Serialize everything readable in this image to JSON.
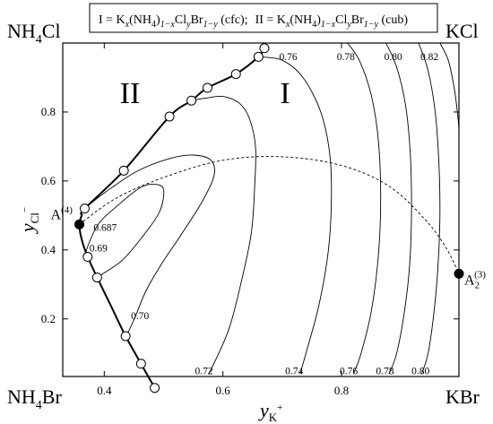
{
  "chart_data": {
    "type": "line",
    "title": "",
    "legend_box": {
      "phase_I": "I = K",
      "phase_I_x": "x",
      "phase_I_mid": "(NH",
      "phase_I_4": "4",
      "phase_I_rest": ")",
      "phase_I_1x": "1−x",
      "phase_I_cl": "Cl",
      "phase_I_y": "y",
      "phase_I_br": "Br",
      "phase_I_1y": "1−y",
      "phase_I_tag": " (cfc);",
      "phase_II": "II = K",
      "phase_II_tag": " (cub)"
    },
    "corners": {
      "top_left_a": "NH",
      "top_left_sub": "4",
      "top_left_b": "Cl",
      "top_right": "KCl",
      "bottom_left_a": "NH",
      "bottom_left_sub": "4",
      "bottom_left_b": "Br",
      "bottom_right": "KBr"
    },
    "region_labels": {
      "I": "I",
      "II": "II"
    },
    "xlabel": {
      "base": "y",
      "sub": "K",
      "sup": "+"
    },
    "ylabel": {
      "base": "y",
      "sub": "Cl",
      "sup": "−"
    },
    "x_ticks": [
      "0.4",
      "0.6",
      "0.8"
    ],
    "y_ticks": [
      "0.2",
      "0.4",
      "0.6",
      "0.8"
    ],
    "xlim": [
      0.33,
      0.998
    ],
    "ylim": [
      0.033,
      1.0
    ],
    "phase_boundary": [
      [
        0.485,
        0.0
      ],
      [
        0.462,
        0.07
      ],
      [
        0.436,
        0.15
      ],
      [
        0.412,
        0.235
      ],
      [
        0.388,
        0.32
      ],
      [
        0.372,
        0.38
      ],
      [
        0.362,
        0.43
      ],
      [
        0.358,
        0.474
      ],
      [
        0.362,
        0.5
      ],
      [
        0.367,
        0.52
      ],
      [
        0.433,
        0.63
      ],
      [
        0.51,
        0.787
      ],
      [
        0.547,
        0.833
      ],
      [
        0.574,
        0.87
      ],
      [
        0.622,
        0.91
      ],
      [
        0.66,
        0.96
      ],
      [
        0.67,
        0.985
      ]
    ],
    "boundary_points": [
      [
        0.485,
        0.0
      ],
      [
        0.462,
        0.07
      ],
      [
        0.436,
        0.15
      ],
      [
        0.388,
        0.32
      ],
      [
        0.372,
        0.38
      ],
      [
        0.367,
        0.52
      ],
      [
        0.433,
        0.63
      ],
      [
        0.51,
        0.787
      ],
      [
        0.547,
        0.833
      ],
      [
        0.574,
        0.87
      ],
      [
        0.622,
        0.91
      ],
      [
        0.66,
        0.96
      ],
      [
        0.67,
        0.985
      ]
    ],
    "special_points": [
      {
        "name": "A4",
        "label": "A",
        "sup": "(4)",
        "x": 0.358,
        "y": 0.474
      },
      {
        "name": "A2",
        "label": "A",
        "sub": "2",
        "sup": "(3)",
        "x": 0.998,
        "y": 0.331
      }
    ],
    "dashed_path": [
      [
        0.358,
        0.474
      ],
      [
        0.42,
        0.55
      ],
      [
        0.5,
        0.61
      ],
      [
        0.6,
        0.66
      ],
      [
        0.7,
        0.67
      ],
      [
        0.8,
        0.645
      ],
      [
        0.88,
        0.585
      ],
      [
        0.94,
        0.49
      ],
      [
        0.975,
        0.41
      ],
      [
        0.998,
        0.331
      ]
    ],
    "contours": [
      {
        "label": "0.687",
        "points": [
          [
            0.358,
            0.474
          ],
          [
            0.362,
            0.468
          ]
        ]
      },
      {
        "label": "0.69",
        "points": [
          [
            0.368,
            0.38
          ],
          [
            0.372,
            0.41
          ],
          [
            0.39,
            0.475
          ],
          [
            0.42,
            0.525
          ],
          [
            0.46,
            0.58
          ],
          [
            0.485,
            0.59
          ],
          [
            0.5,
            0.575
          ],
          [
            0.493,
            0.51
          ],
          [
            0.462,
            0.433
          ],
          [
            0.43,
            0.37
          ],
          [
            0.397,
            0.33
          ],
          [
            0.388,
            0.32
          ]
        ]
      },
      {
        "label": "0.70",
        "points": [
          [
            0.367,
            0.52
          ],
          [
            0.4,
            0.565
          ],
          [
            0.455,
            0.628
          ],
          [
            0.51,
            0.665
          ],
          [
            0.55,
            0.675
          ],
          [
            0.58,
            0.66
          ],
          [
            0.585,
            0.615
          ],
          [
            0.565,
            0.54
          ],
          [
            0.53,
            0.445
          ],
          [
            0.495,
            0.355
          ],
          [
            0.47,
            0.28
          ],
          [
            0.452,
            0.205
          ],
          [
            0.44,
            0.16
          ],
          [
            0.436,
            0.15
          ]
        ]
      },
      {
        "label": "0.72",
        "points": [
          [
            0.547,
            0.833
          ],
          [
            0.57,
            0.84
          ],
          [
            0.6,
            0.845
          ],
          [
            0.628,
            0.825
          ],
          [
            0.645,
            0.78
          ],
          [
            0.655,
            0.7
          ],
          [
            0.654,
            0.6
          ],
          [
            0.648,
            0.45
          ],
          [
            0.63,
            0.3
          ],
          [
            0.61,
            0.17
          ],
          [
            0.582,
            0.06
          ],
          [
            0.575,
            0.04
          ]
        ]
      },
      {
        "label": "0.74",
        "points": [
          [
            0.66,
            0.96
          ],
          [
            0.7,
            0.95
          ],
          [
            0.735,
            0.9
          ],
          [
            0.765,
            0.8
          ],
          [
            0.78,
            0.68
          ],
          [
            0.783,
            0.55
          ],
          [
            0.778,
            0.4
          ],
          [
            0.762,
            0.24
          ],
          [
            0.74,
            0.1
          ],
          [
            0.73,
            0.04
          ]
        ]
      },
      {
        "label": "0.76",
        "points": [
          [
            0.81,
            1.0
          ],
          [
            0.83,
            0.95
          ],
          [
            0.85,
            0.85
          ],
          [
            0.862,
            0.72
          ],
          [
            0.866,
            0.55
          ],
          [
            0.862,
            0.38
          ],
          [
            0.85,
            0.22
          ],
          [
            0.833,
            0.1
          ],
          [
            0.82,
            0.04
          ]
        ]
      },
      {
        "label": "0.78",
        "points": [
          [
            0.875,
            1.0
          ],
          [
            0.893,
            0.93
          ],
          [
            0.908,
            0.82
          ],
          [
            0.916,
            0.68
          ],
          [
            0.918,
            0.52
          ],
          [
            0.915,
            0.36
          ],
          [
            0.906,
            0.22
          ],
          [
            0.893,
            0.1
          ],
          [
            0.88,
            0.04
          ]
        ]
      },
      {
        "label": "0.80",
        "points": [
          [
            0.93,
            1.0
          ],
          [
            0.946,
            0.92
          ],
          [
            0.958,
            0.8
          ],
          [
            0.964,
            0.66
          ],
          [
            0.966,
            0.51
          ],
          [
            0.963,
            0.36
          ],
          [
            0.956,
            0.22
          ],
          [
            0.946,
            0.1
          ],
          [
            0.935,
            0.04
          ]
        ]
      },
      {
        "label": "0.82",
        "points": [
          [
            0.966,
            1.0
          ],
          [
            0.98,
            0.95
          ],
          [
            0.99,
            0.87
          ],
          [
            0.996,
            0.79
          ],
          [
            0.998,
            0.75
          ]
        ]
      }
    ],
    "contour_labels": [
      {
        "text": "0.687",
        "x": 0.382,
        "y": 0.455,
        "anchor": "start"
      },
      {
        "text": "0.69",
        "x": 0.375,
        "y": 0.395,
        "anchor": "start"
      },
      {
        "text": "0.70",
        "x": 0.445,
        "y": 0.2,
        "anchor": "start"
      },
      {
        "text": "0.72",
        "x": 0.553,
        "y": 0.04,
        "anchor": "start"
      },
      {
        "text": "0.74",
        "x": 0.705,
        "y": 0.04,
        "anchor": "start"
      },
      {
        "text": "0.76",
        "x": 0.797,
        "y": 0.04,
        "anchor": "start"
      },
      {
        "text": "0.78",
        "x": 0.858,
        "y": 0.04,
        "anchor": "start"
      },
      {
        "text": "0.80",
        "x": 0.918,
        "y": 0.04,
        "anchor": "start"
      },
      {
        "text": "0.76",
        "x": 0.695,
        "y": 0.95,
        "anchor": "start"
      },
      {
        "text": "0.78",
        "x": 0.792,
        "y": 0.95,
        "anchor": "start"
      },
      {
        "text": "0.80",
        "x": 0.872,
        "y": 0.95,
        "anchor": "start"
      },
      {
        "text": "0.82",
        "x": 0.933,
        "y": 0.95,
        "anchor": "start"
      }
    ]
  }
}
